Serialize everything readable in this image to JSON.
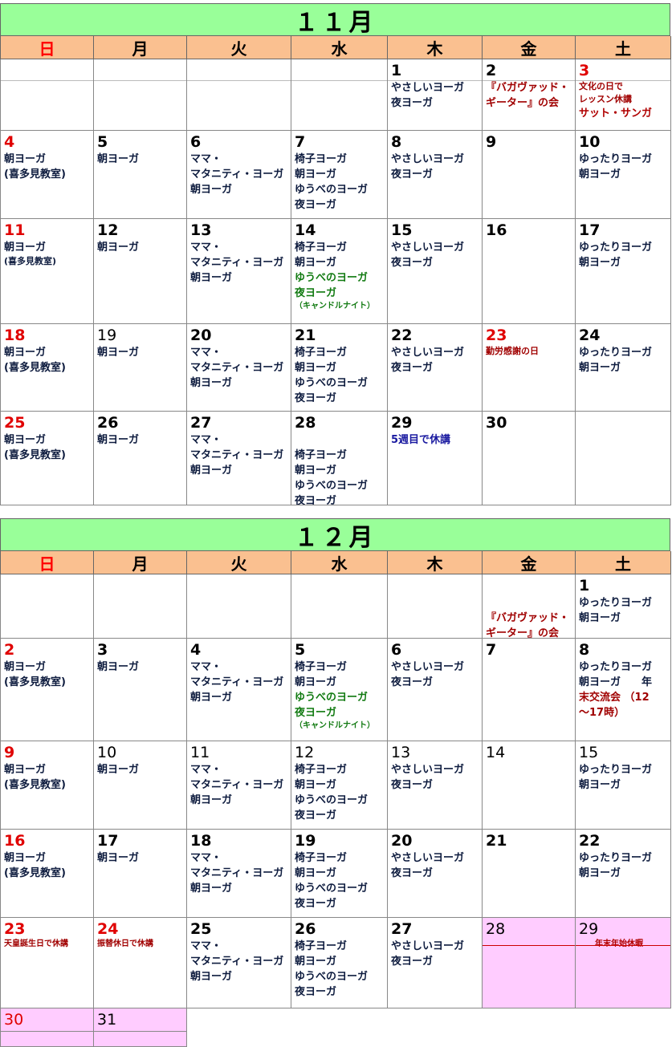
{
  "weekdays": [
    "日",
    "月",
    "火",
    "水",
    "木",
    "金",
    "土"
  ],
  "months": [
    {
      "title": "１１月",
      "weeks": [
        [
          {
            "day": "",
            "lines": []
          },
          {
            "day": "",
            "lines": []
          },
          {
            "day": "",
            "lines": []
          },
          {
            "day": "",
            "lines": []
          },
          {
            "day": "1",
            "lines": [
              {
                "text": "やさしいヨーガ"
              },
              {
                "text": "夜ヨーガ"
              }
            ]
          },
          {
            "day": "2",
            "lines": [
              {
                "text": "『バガヴァッド・",
                "color": "darkred"
              },
              {
                "text": "ギーター』の会",
                "color": "darkred"
              }
            ]
          },
          {
            "day": "3",
            "red": true,
            "lines": [
              {
                "text": "文化の日で",
                "color": "darkred",
                "size": "small"
              },
              {
                "text": "レッスン休講",
                "color": "darkred",
                "size": "small"
              },
              {
                "text": "サット・サンガ",
                "color": "red"
              }
            ]
          }
        ],
        [
          {
            "day": "4",
            "red": true,
            "lines": [
              {
                "text": "朝ヨーガ"
              },
              {
                "text": "(喜多見教室)"
              }
            ]
          },
          {
            "day": "5",
            "lines": [
              {
                "text": "朝ヨーガ"
              }
            ]
          },
          {
            "day": "6",
            "lines": [
              {
                "text": "ママ・"
              },
              {
                "text": "マタニティ・ヨーガ"
              },
              {
                "text": "朝ヨーガ"
              }
            ]
          },
          {
            "day": "7",
            "lines": [
              {
                "text": "椅子ヨーガ"
              },
              {
                "text": "朝ヨーガ"
              },
              {
                "text": "ゆうべのヨーガ"
              },
              {
                "text": "夜ヨーガ"
              }
            ]
          },
          {
            "day": "8",
            "lines": [
              {
                "text": "やさしいヨーガ"
              },
              {
                "text": "夜ヨーガ"
              }
            ]
          },
          {
            "day": "9",
            "lines": []
          },
          {
            "day": "10",
            "lines": [
              {
                "text": "ゆったりヨーガ"
              },
              {
                "text": "朝ヨーガ"
              }
            ]
          }
        ],
        [
          {
            "day": "11",
            "red": true,
            "lines": [
              {
                "text": "朝ヨーガ"
              },
              {
                "text": "(喜多見教室)",
                "size": "small"
              }
            ]
          },
          {
            "day": "12",
            "lines": [
              {
                "text": "朝ヨーガ"
              }
            ]
          },
          {
            "day": "13",
            "lines": [
              {
                "text": "ママ・"
              },
              {
                "text": "マタニティ・ヨーガ"
              },
              {
                "text": "朝ヨーガ"
              }
            ]
          },
          {
            "day": "14",
            "lines": [
              {
                "text": "椅子ヨーガ"
              },
              {
                "text": "朝ヨーガ"
              },
              {
                "text": "ゆうべのヨーガ",
                "color": "green"
              },
              {
                "text": "夜ヨーガ",
                "color": "green"
              },
              {
                "text": "（キャンドルナイト）",
                "color": "green",
                "size": "tiny"
              }
            ]
          },
          {
            "day": "15",
            "lines": [
              {
                "text": "やさしいヨーガ"
              },
              {
                "text": "夜ヨーガ"
              }
            ]
          },
          {
            "day": "16",
            "lines": []
          },
          {
            "day": "17",
            "lines": [
              {
                "text": "ゆったりヨーガ"
              },
              {
                "text": "朝ヨーガ"
              }
            ]
          }
        ],
        [
          {
            "day": "18",
            "red": true,
            "lines": [
              {
                "text": "朝ヨーガ"
              },
              {
                "text": "(喜多見教室)"
              }
            ]
          },
          {
            "day": "19",
            "thin": true,
            "lines": [
              {
                "text": "朝ヨーガ"
              }
            ]
          },
          {
            "day": "20",
            "lines": [
              {
                "text": "ママ・"
              },
              {
                "text": "マタニティ・ヨーガ"
              },
              {
                "text": "朝ヨーガ"
              }
            ]
          },
          {
            "day": "21",
            "lines": [
              {
                "text": "椅子ヨーガ"
              },
              {
                "text": "朝ヨーガ"
              },
              {
                "text": "ゆうべのヨーガ"
              },
              {
                "text": "夜ヨーガ"
              }
            ]
          },
          {
            "day": "22",
            "lines": [
              {
                "text": "やさしいヨーガ"
              },
              {
                "text": "夜ヨーガ"
              }
            ]
          },
          {
            "day": "23",
            "red": true,
            "lines": [
              {
                "text": "勤労感謝の日",
                "color": "darkred",
                "size": "small"
              }
            ]
          },
          {
            "day": "24",
            "lines": [
              {
                "text": "ゆったりヨーガ"
              },
              {
                "text": "朝ヨーガ"
              }
            ]
          }
        ],
        [
          {
            "day": "25",
            "red": true,
            "lines": [
              {
                "text": "朝ヨーガ"
              },
              {
                "text": "(喜多見教室)"
              }
            ]
          },
          {
            "day": "26",
            "lines": [
              {
                "text": "朝ヨーガ"
              }
            ]
          },
          {
            "day": "27",
            "lines": [
              {
                "text": "ママ・"
              },
              {
                "text": "マタニティ・ヨーガ"
              },
              {
                "text": "朝ヨーガ"
              }
            ]
          },
          {
            "day": "28",
            "lines": [
              {
                "text": ""
              },
              {
                "text": "椅子ヨーガ"
              },
              {
                "text": "朝ヨーガ"
              },
              {
                "text": "ゆうべのヨーガ"
              },
              {
                "text": "夜ヨーガ"
              }
            ]
          },
          {
            "day": "29",
            "lines": [
              {
                "text": "5週目で休講",
                "color": "blue"
              }
            ]
          },
          {
            "day": "30",
            "lines": []
          },
          {
            "day": "",
            "lines": []
          }
        ]
      ]
    },
    {
      "title": "１２月",
      "weeks": [
        [
          {
            "day": "",
            "lines": []
          },
          {
            "day": "",
            "lines": []
          },
          {
            "day": "",
            "lines": []
          },
          {
            "day": "",
            "lines": []
          },
          {
            "day": "",
            "lines": []
          },
          {
            "day": "",
            "lines": [
              {
                "text": ""
              },
              {
                "text": "『バガヴァッド・",
                "color": "darkred"
              },
              {
                "text": "ギーター』の会",
                "color": "darkred"
              }
            ]
          },
          {
            "day": "1",
            "lines": [
              {
                "text": "ゆったりヨーガ"
              },
              {
                "text": "朝ヨーガ"
              }
            ]
          }
        ],
        [
          {
            "day": "2",
            "red": true,
            "lines": [
              {
                "text": "朝ヨーガ"
              },
              {
                "text": "(喜多見教室)"
              }
            ]
          },
          {
            "day": "3",
            "lines": [
              {
                "text": "朝ヨーガ"
              }
            ]
          },
          {
            "day": "4",
            "lines": [
              {
                "text": "ママ・"
              },
              {
                "text": "マタニティ・ヨーガ"
              },
              {
                "text": "朝ヨーガ"
              }
            ]
          },
          {
            "day": "5",
            "lines": [
              {
                "text": "椅子ヨーガ"
              },
              {
                "text": "朝ヨーガ"
              },
              {
                "text": "ゆうべのヨーガ",
                "color": "green"
              },
              {
                "text": "夜ヨーガ",
                "color": "green"
              },
              {
                "text": "（キャンドルナイト）",
                "color": "green",
                "size": "tiny"
              }
            ]
          },
          {
            "day": "6",
            "lines": [
              {
                "text": "やさしいヨーガ"
              },
              {
                "text": "夜ヨーガ"
              }
            ]
          },
          {
            "day": "7",
            "lines": []
          },
          {
            "day": "8",
            "lines": [
              {
                "text": "ゆったりヨーガ"
              },
              {
                "text": "朝ヨーガ　　年",
                "mixed": "年"
              },
              {
                "text": "末交流会 （12",
                "color": "darkred"
              },
              {
                "text": "〜17時）",
                "color": "darkred"
              }
            ]
          }
        ],
        [
          {
            "day": "9",
            "red": true,
            "lines": [
              {
                "text": "朝ヨーガ"
              },
              {
                "text": "(喜多見教室)"
              }
            ]
          },
          {
            "day": "10",
            "thin": true,
            "lines": [
              {
                "text": "朝ヨーガ"
              }
            ]
          },
          {
            "day": "11",
            "thin": true,
            "lines": [
              {
                "text": "ママ・"
              },
              {
                "text": "マタニティ・ヨーガ"
              },
              {
                "text": "朝ヨーガ"
              }
            ]
          },
          {
            "day": "12",
            "thin": true,
            "lines": [
              {
                "text": "椅子ヨーガ"
              },
              {
                "text": "朝ヨーガ"
              },
              {
                "text": "ゆうべのヨーガ"
              },
              {
                "text": "夜ヨーガ"
              }
            ]
          },
          {
            "day": "13",
            "thin": true,
            "lines": [
              {
                "text": "やさしいヨーガ"
              },
              {
                "text": "夜ヨーガ"
              }
            ]
          },
          {
            "day": "14",
            "thin": true,
            "lines": []
          },
          {
            "day": "15",
            "thin": true,
            "lines": [
              {
                "text": "ゆったりヨーガ"
              },
              {
                "text": "朝ヨーガ"
              }
            ]
          }
        ],
        [
          {
            "day": "16",
            "red": true,
            "lines": [
              {
                "text": "朝ヨーガ"
              },
              {
                "text": "(喜多見教室)"
              }
            ]
          },
          {
            "day": "17",
            "lines": [
              {
                "text": "朝ヨーガ"
              }
            ]
          },
          {
            "day": "18",
            "lines": [
              {
                "text": "ママ・"
              },
              {
                "text": "マタニティ・ヨーガ"
              },
              {
                "text": "朝ヨーガ"
              }
            ]
          },
          {
            "day": "19",
            "lines": [
              {
                "text": "椅子ヨーガ"
              },
              {
                "text": "朝ヨーガ"
              },
              {
                "text": "ゆうべのヨーガ"
              },
              {
                "text": "夜ヨーガ"
              }
            ]
          },
          {
            "day": "20",
            "lines": [
              {
                "text": "やさしいヨーガ"
              },
              {
                "text": "夜ヨーガ"
              }
            ]
          },
          {
            "day": "21",
            "lines": []
          },
          {
            "day": "22",
            "lines": [
              {
                "text": "ゆったりヨーガ"
              },
              {
                "text": "朝ヨーガ"
              }
            ]
          }
        ],
        [
          {
            "day": "23",
            "red": true,
            "lines": [
              {
                "text": "天皇誕生日で休講",
                "color": "darkred",
                "size": "tiny"
              }
            ]
          },
          {
            "day": "24",
            "red": true,
            "lines": [
              {
                "text": "振替休日で休講",
                "color": "darkred",
                "size": "tiny"
              }
            ]
          },
          {
            "day": "25",
            "lines": [
              {
                "text": "ママ・"
              },
              {
                "text": "マタニティ・ヨーガ"
              },
              {
                "text": "朝ヨーガ"
              }
            ]
          },
          {
            "day": "26",
            "lines": [
              {
                "text": "椅子ヨーガ"
              },
              {
                "text": "朝ヨーガ"
              },
              {
                "text": "ゆうべのヨーガ"
              },
              {
                "text": "夜ヨーガ"
              }
            ]
          },
          {
            "day": "27",
            "lines": [
              {
                "text": "やさしいヨーガ"
              },
              {
                "text": "夜ヨーガ"
              }
            ]
          },
          {
            "day": "28",
            "pink": true,
            "thin": true,
            "lines": []
          },
          {
            "day": "29",
            "pink": true,
            "thin": true,
            "lines": [
              {
                "text": "　　年末年始休暇",
                "color": "red",
                "size": "tiny"
              }
            ]
          }
        ],
        [
          {
            "day": "30",
            "pink": true,
            "red": true,
            "thin": true,
            "lines": []
          },
          {
            "day": "31",
            "pink": true,
            "thin": true,
            "lines": []
          }
        ]
      ]
    }
  ]
}
